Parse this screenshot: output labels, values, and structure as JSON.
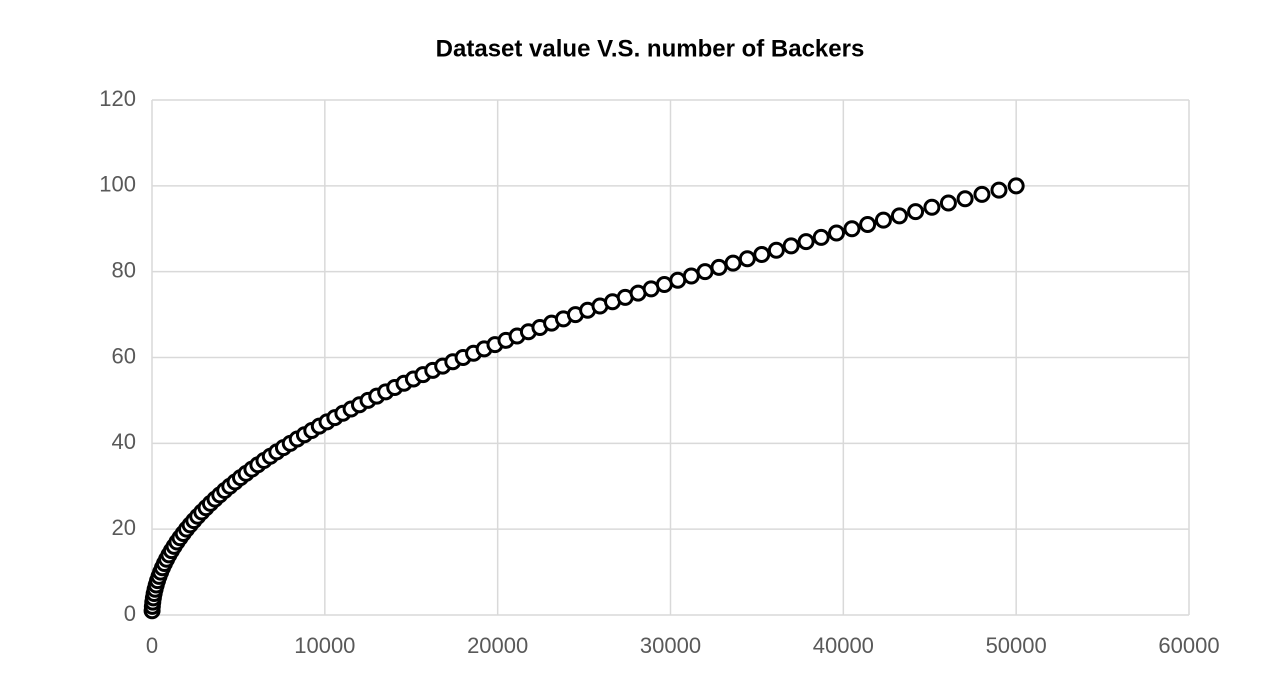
{
  "chart_data": {
    "type": "scatter",
    "title": "Dataset value V.S. number of Backers",
    "x": [
      5,
      20,
      45,
      80,
      125,
      180,
      245,
      320,
      405,
      500,
      605,
      720,
      845,
      980,
      1125,
      1280,
      1445,
      1620,
      1805,
      2000,
      2205,
      2420,
      2645,
      2880,
      3125,
      3380,
      3645,
      3920,
      4205,
      4500,
      4805,
      5120,
      5445,
      5780,
      6125,
      6480,
      6845,
      7220,
      7605,
      8000,
      8405,
      8820,
      9245,
      9680,
      10125,
      10580,
      11045,
      11520,
      12005,
      12500,
      13005,
      13520,
      14045,
      14580,
      15125,
      15680,
      16245,
      16820,
      17405,
      18000,
      18605,
      19220,
      19845,
      20480,
      21125,
      21780,
      22445,
      23120,
      23805,
      24500,
      25205,
      25920,
      26645,
      27380,
      28125,
      28880,
      29645,
      30420,
      31205,
      32000,
      32805,
      33620,
      34445,
      35280,
      36125,
      36980,
      37845,
      38720,
      39605,
      40500,
      41405,
      42320,
      43245,
      44180,
      45125,
      46080,
      47045,
      48020,
      49005,
      50000
    ],
    "values": [
      1,
      2,
      3,
      4,
      5,
      6,
      7,
      8,
      9,
      10,
      11,
      12,
      13,
      14,
      15,
      16,
      17,
      18,
      19,
      20,
      21,
      22,
      23,
      24,
      25,
      26,
      27,
      28,
      29,
      30,
      31,
      32,
      33,
      34,
      35,
      36,
      37,
      38,
      39,
      40,
      41,
      42,
      43,
      44,
      45,
      46,
      47,
      48,
      49,
      50,
      51,
      52,
      53,
      54,
      55,
      56,
      57,
      58,
      59,
      60,
      61,
      62,
      63,
      64,
      65,
      66,
      67,
      68,
      69,
      70,
      71,
      72,
      73,
      74,
      75,
      76,
      77,
      78,
      79,
      80,
      81,
      82,
      83,
      84,
      85,
      86,
      87,
      88,
      89,
      90,
      91,
      92,
      93,
      94,
      95,
      96,
      97,
      98,
      99,
      100
    ],
    "color": "#000000",
    "xlim": [
      0,
      60000
    ],
    "xticks": [
      0,
      10000,
      20000,
      30000,
      40000,
      50000,
      60000
    ],
    "ylim": [
      0,
      120
    ],
    "yticks": [
      0,
      20,
      40,
      60,
      80,
      100,
      120
    ],
    "grid": true
  }
}
